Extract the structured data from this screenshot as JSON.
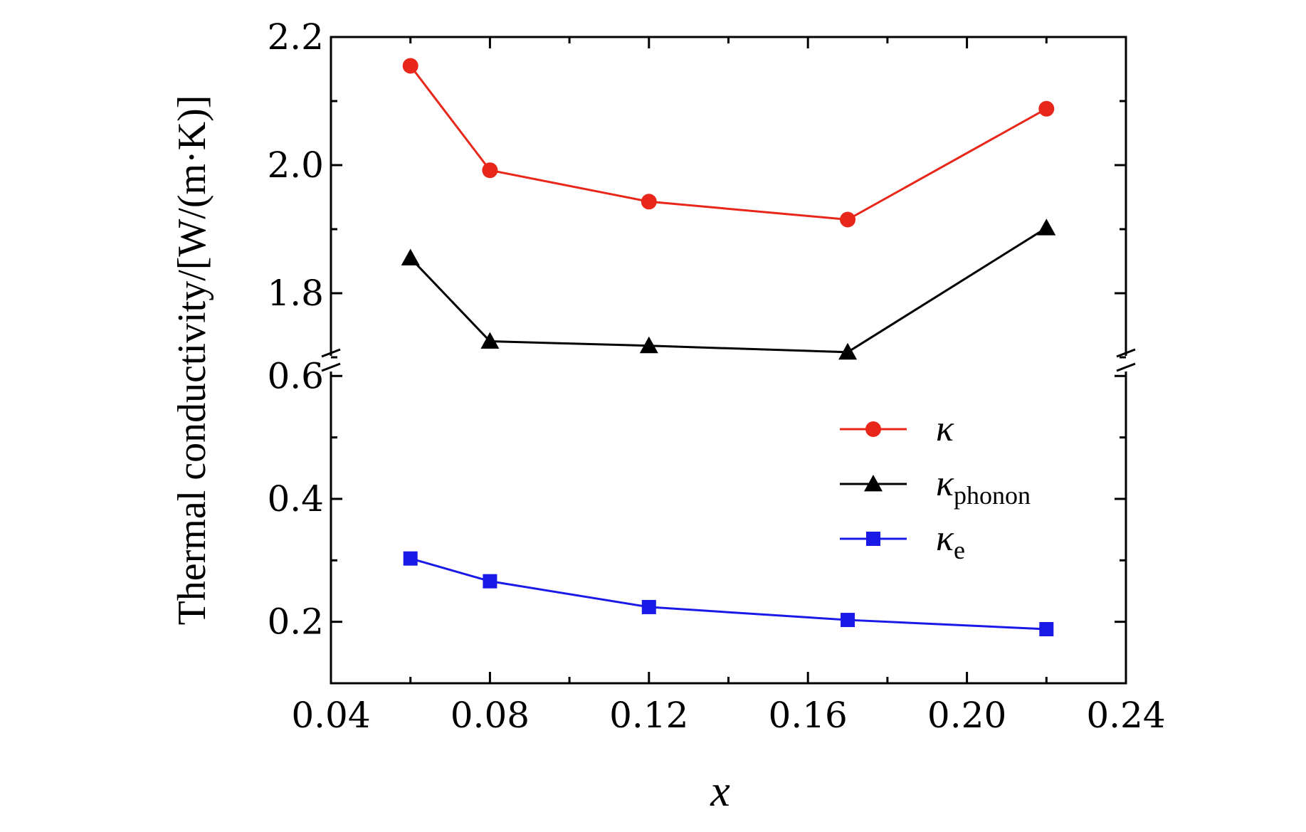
{
  "chart_data": {
    "type": "line",
    "title": "",
    "xlabel": "x",
    "ylabel": "Thermal conductivity/[W/(m·K)]",
    "x": [
      0.06,
      0.08,
      0.12,
      0.17,
      0.22
    ],
    "xlim": [
      0.04,
      0.24
    ],
    "xticks": [
      "0.04",
      "0.08",
      "0.12",
      "0.16",
      "0.20",
      "0.24"
    ],
    "xtick_values": [
      0.04,
      0.08,
      0.12,
      0.16,
      0.2,
      0.24
    ],
    "broken_y_axis": {
      "upper": {
        "ylim": [
          1.69,
          2.2
        ],
        "ticks": [
          "1.8",
          "2.0",
          "2.2"
        ],
        "tick_values": [
          1.8,
          2.0,
          2.2
        ]
      },
      "lower": {
        "ylim": [
          0.1,
          0.62
        ],
        "ticks": [
          "0.2",
          "0.4",
          "0.6"
        ],
        "tick_values": [
          0.2,
          0.4,
          0.6
        ]
      }
    },
    "series": [
      {
        "name": "κ",
        "legend_main": "κ",
        "legend_sub": "",
        "color": "#e8271a",
        "marker": "circle",
        "segment": "upper",
        "values": [
          2.155,
          1.992,
          1.943,
          1.915,
          2.088
        ]
      },
      {
        "name": "κphonon",
        "legend_main": "κ",
        "legend_sub": "phonon",
        "color": "#000000",
        "marker": "triangle",
        "segment": "upper",
        "values": [
          1.855,
          1.725,
          1.718,
          1.708,
          1.902
        ]
      },
      {
        "name": "κe",
        "legend_main": "κ",
        "legend_sub": "e",
        "color": "#1a1ae8",
        "marker": "square",
        "segment": "lower",
        "values": [
          0.303,
          0.266,
          0.224,
          0.203,
          0.188
        ]
      }
    ],
    "legend_position": "center-right",
    "grid": false
  }
}
